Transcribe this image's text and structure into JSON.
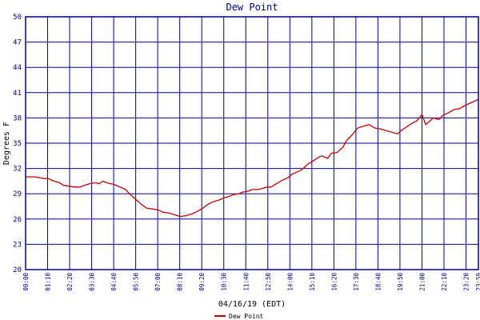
{
  "chart_data": {
    "type": "line",
    "title": "Dew Point",
    "xlabel": "04/16/19 (EDT)",
    "ylabel": "Degrees F",
    "ylim": [
      20,
      50
    ],
    "yticks": [
      20,
      23,
      26,
      29,
      32,
      35,
      38,
      41,
      44,
      47,
      50
    ],
    "x_tick_labels": [
      "00:00",
      "01:10",
      "02:20",
      "03:30",
      "04:40",
      "05:50",
      "07:00",
      "08:10",
      "09:20",
      "10:30",
      "11:40",
      "12:50",
      "14:00",
      "15:10",
      "16:20",
      "17:30",
      "18:40",
      "19:50",
      "21:00",
      "22:10",
      "23:20",
      "23:59"
    ],
    "grid": true,
    "legend": "bottom-center",
    "series": [
      {
        "name": "Dew Point",
        "color": "#c00000",
        "x": [
          0.0,
          0.5,
          1.0,
          1.2,
          1.5,
          1.8,
          2.0,
          2.3,
          2.6,
          2.9,
          3.1,
          3.4,
          3.7,
          3.9,
          4.1,
          4.3,
          4.5,
          4.7,
          5.0,
          5.3,
          5.5,
          5.8,
          6.1,
          6.4,
          6.7,
          7.0,
          7.3,
          7.6,
          7.9,
          8.2,
          8.5,
          8.8,
          9.1,
          9.4,
          9.7,
          10.0,
          10.3,
          10.5,
          10.8,
          11.0,
          11.3,
          11.5,
          11.8,
          12.0,
          12.3,
          12.5,
          12.8,
          13.0,
          13.3,
          13.6,
          13.9,
          14.1,
          14.4,
          14.6,
          14.8,
          15.0,
          15.1,
          15.3,
          15.5,
          15.7,
          16.0,
          16.2,
          16.5,
          16.8,
          17.0,
          17.3,
          17.6,
          17.9,
          18.2,
          18.5,
          18.8,
          19.1,
          19.4,
          19.7,
          19.9,
          20.1,
          20.3,
          20.5,
          20.7,
          20.9,
          21.0,
          21.2,
          21.4,
          21.6,
          21.9,
          22.1,
          22.4,
          22.7,
          23.0,
          23.3,
          23.6,
          23.8,
          23.99
        ],
        "values": [
          31.0,
          31.0,
          30.8,
          30.8,
          30.5,
          30.3,
          30.0,
          29.9,
          29.8,
          29.8,
          30.0,
          30.2,
          30.3,
          30.2,
          30.5,
          30.3,
          30.2,
          30.1,
          29.8,
          29.5,
          29.0,
          28.4,
          27.8,
          27.3,
          27.2,
          27.1,
          26.8,
          26.7,
          26.5,
          26.3,
          26.4,
          26.6,
          26.9,
          27.3,
          27.8,
          28.1,
          28.3,
          28.5,
          28.7,
          28.9,
          29.0,
          29.2,
          29.3,
          29.5,
          29.5,
          29.6,
          29.8,
          29.8,
          30.2,
          30.6,
          30.9,
          31.3,
          31.6,
          31.8,
          32.2,
          32.6,
          32.7,
          33.0,
          33.3,
          33.5,
          33.2,
          33.8,
          33.9,
          34.5,
          35.3,
          36.0,
          36.8,
          37.0,
          37.2,
          36.8,
          36.7,
          36.5,
          36.3,
          36.1,
          36.5,
          36.8,
          37.1,
          37.4,
          37.6,
          38.1,
          38.4,
          37.2,
          37.6,
          38.0,
          37.8,
          38.3,
          38.6,
          39.0,
          39.1,
          39.5,
          39.8,
          40.0,
          40.2
        ]
      }
    ]
  }
}
